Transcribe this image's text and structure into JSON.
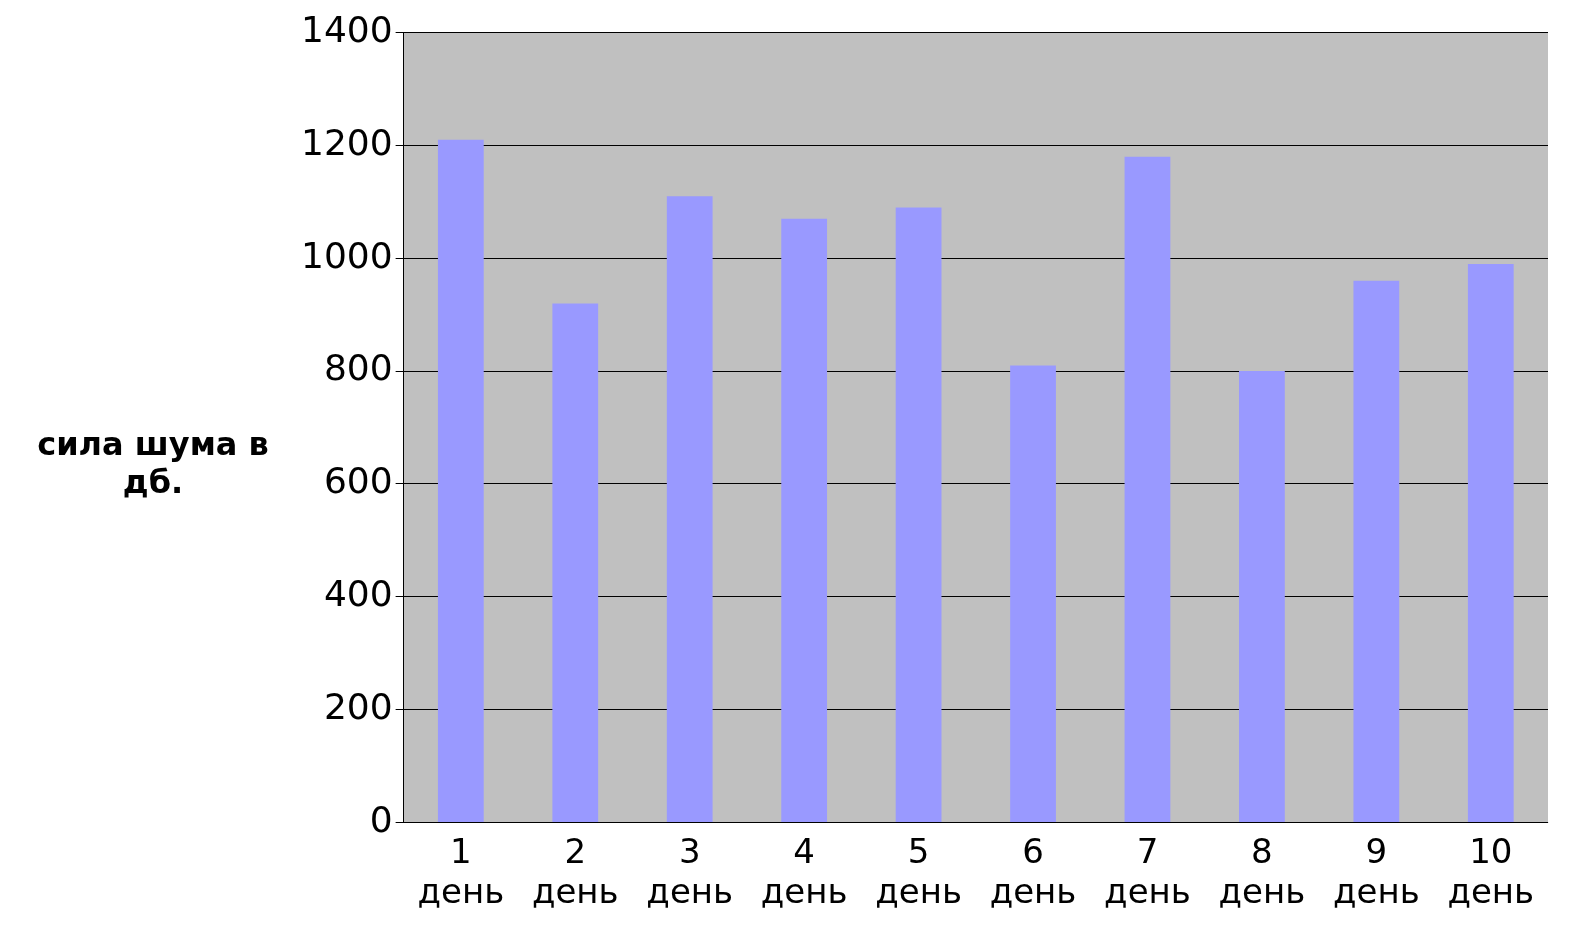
{
  "chart_data": {
    "type": "bar",
    "ylabel": "сила шума в дб.",
    "categories": [
      "1 день",
      "2 день",
      "3 день",
      "4 день",
      "5 день",
      "6 день",
      "7 день",
      "8 день",
      "9 день",
      "10 день"
    ],
    "values": [
      1210,
      920,
      1110,
      1070,
      1090,
      810,
      1180,
      800,
      960,
      990
    ],
    "color": "#9999ff",
    "ylim": [
      0,
      1400
    ],
    "yticks": [
      0,
      200,
      400,
      600,
      800,
      1000,
      1200,
      1400
    ],
    "grid": "y",
    "legend": false
  }
}
